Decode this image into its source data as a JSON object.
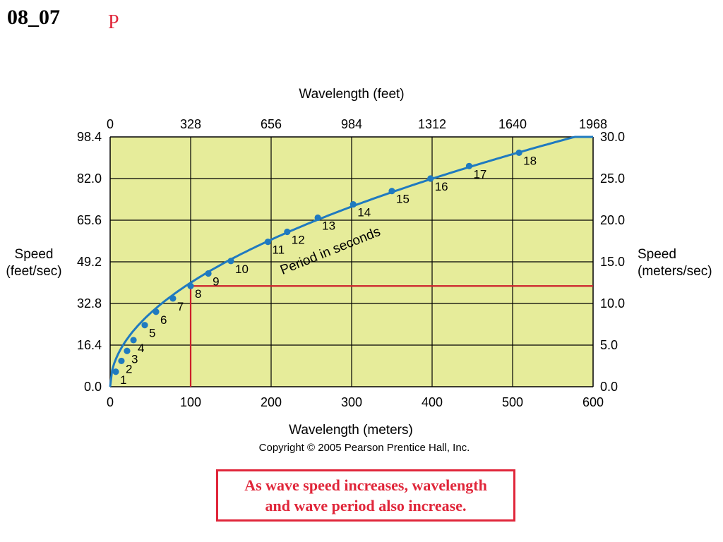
{
  "slide": {
    "id": "08_07",
    "letter": "P"
  },
  "colors": {
    "plot_bg": "#e6ec9a",
    "curve": "#1f7ac0",
    "marker": "#1f7ac0",
    "guide": "#cc1f2a",
    "grid": "#000000",
    "callout": "#e0263a"
  },
  "chart_data": {
    "type": "line",
    "title": "",
    "x_bottom": {
      "label": "Wavelength (meters)",
      "ticks": [
        "0",
        "100",
        "200",
        "300",
        "400",
        "500",
        "600"
      ],
      "range": [
        0,
        600
      ]
    },
    "x_top": {
      "label": "Wavelength (feet)",
      "ticks": [
        "0",
        "328",
        "656",
        "984",
        "1312",
        "1640",
        "1968"
      ]
    },
    "y_left": {
      "label_lines": [
        "Speed",
        "(feet/sec)"
      ],
      "ticks": [
        "0.0",
        "16.4",
        "32.8",
        "49.2",
        "65.6",
        "82.0",
        "98.4"
      ]
    },
    "y_right": {
      "label_lines": [
        "Speed",
        "(meters/sec)"
      ],
      "ticks": [
        "0.0",
        "5.0",
        "10.0",
        "15.0",
        "20.0",
        "25.0",
        "30.0"
      ],
      "range": [
        0,
        30
      ]
    },
    "grid": true,
    "curve_label": "Period in seconds",
    "series": [
      {
        "points": [
          {
            "label": "1",
            "x": 7,
            "y": 1.8
          },
          {
            "label": "2",
            "x": 14,
            "y": 3.1
          },
          {
            "label": "3",
            "x": 21,
            "y": 4.3
          },
          {
            "label": "4",
            "x": 29,
            "y": 5.6
          },
          {
            "label": "5",
            "x": 43,
            "y": 7.4
          },
          {
            "label": "6",
            "x": 57,
            "y": 9.0
          },
          {
            "label": "7",
            "x": 78,
            "y": 10.6
          },
          {
            "label": "8",
            "x": 100,
            "y": 12.1
          },
          {
            "label": "9",
            "x": 122,
            "y": 13.6
          },
          {
            "label": "10",
            "x": 150,
            "y": 15.1
          },
          {
            "label": "11",
            "x": 196,
            "y": 17.4
          },
          {
            "label": "12",
            "x": 220,
            "y": 18.6
          },
          {
            "label": "13",
            "x": 258,
            "y": 20.3
          },
          {
            "label": "14",
            "x": 302,
            "y": 21.9
          },
          {
            "label": "15",
            "x": 350,
            "y": 23.5
          },
          {
            "label": "16",
            "x": 398,
            "y": 25.0
          },
          {
            "label": "17",
            "x": 446,
            "y": 26.5
          },
          {
            "label": "18",
            "x": 508,
            "y": 28.1
          }
        ]
      }
    ],
    "highlight": {
      "x": 100,
      "y": 12.1
    }
  },
  "footer": {
    "copyright": "Copyright © 2005 Pearson Prentice Hall, Inc.",
    "callout_line1": "As wave speed increases, wavelength",
    "callout_line2": "and wave period also increase."
  }
}
